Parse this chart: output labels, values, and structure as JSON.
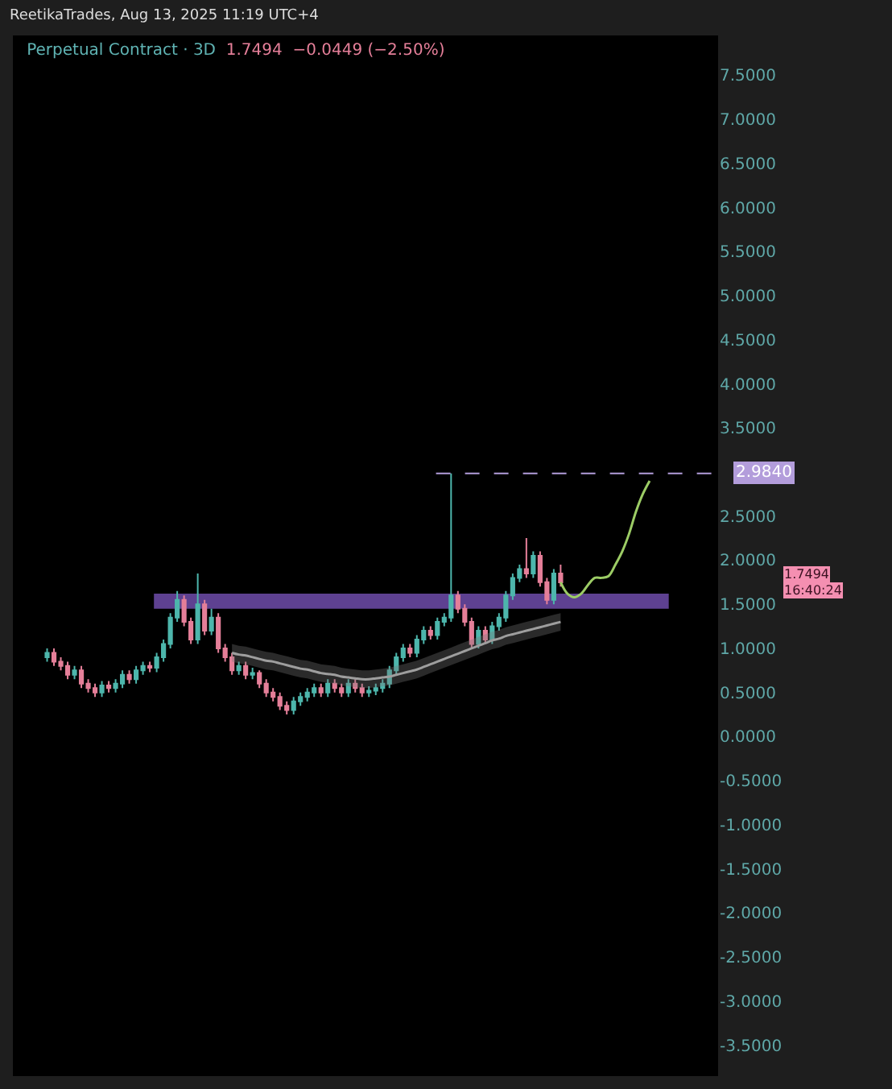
{
  "chart_data": {
    "type": "candlestick",
    "title": "Perpetual Contract · 3D",
    "subtitle": "1.7494  −0.0449 (−2.50%)",
    "annotations": [
      "ReetikaTrades, Aug 13, 2025 11:19 UTC+4",
      "1.7494",
      "16:40:24"
    ],
    "categories": [
      null,
      null,
      null,
      null,
      null,
      null,
      null,
      null,
      null,
      null,
      null,
      null,
      null,
      null,
      null,
      null,
      null,
      null,
      null,
      null,
      null,
      null,
      null,
      null,
      null,
      null,
      null,
      null,
      null,
      null,
      null,
      null,
      null,
      null,
      null,
      null,
      null,
      null,
      null,
      null,
      null,
      null,
      null,
      null,
      null,
      null,
      null,
      null,
      null,
      null,
      null,
      null,
      null,
      null,
      null,
      null,
      null,
      null,
      null,
      null,
      null,
      null,
      null,
      null,
      null,
      null,
      null,
      null,
      null,
      null,
      null,
      null,
      null,
      null,
      null,
      null,
      null,
      null,
      null,
      null,
      null,
      null,
      null,
      null,
      null,
      null,
      null,
      null,
      null,
      null,
      null,
      null,
      null,
      null,
      null,
      null
    ],
    "ohlc": [
      [
        0.9,
        1.0,
        0.85,
        0.95
      ],
      [
        0.95,
        1.0,
        0.8,
        0.85
      ],
      [
        0.85,
        0.9,
        0.75,
        0.8
      ],
      [
        0.8,
        0.85,
        0.65,
        0.7
      ],
      [
        0.7,
        0.8,
        0.65,
        0.75
      ],
      [
        0.75,
        0.8,
        0.55,
        0.6
      ],
      [
        0.6,
        0.65,
        0.5,
        0.55
      ],
      [
        0.55,
        0.6,
        0.45,
        0.5
      ],
      [
        0.5,
        0.63,
        0.45,
        0.58
      ],
      [
        0.58,
        0.63,
        0.5,
        0.55
      ],
      [
        0.55,
        0.65,
        0.5,
        0.6
      ],
      [
        0.6,
        0.75,
        0.55,
        0.7
      ],
      [
        0.7,
        0.75,
        0.6,
        0.65
      ],
      [
        0.65,
        0.8,
        0.6,
        0.75
      ],
      [
        0.75,
        0.85,
        0.7,
        0.8
      ],
      [
        0.8,
        0.85,
        0.73,
        0.78
      ],
      [
        0.78,
        0.95,
        0.73,
        0.9
      ],
      [
        0.9,
        1.1,
        0.85,
        1.05
      ],
      [
        1.05,
        1.4,
        1.0,
        1.35
      ],
      [
        1.35,
        1.65,
        1.3,
        1.55
      ],
      [
        1.55,
        1.6,
        1.25,
        1.3
      ],
      [
        1.3,
        1.35,
        1.05,
        1.1
      ],
      [
        1.1,
        1.85,
        1.05,
        1.5
      ],
      [
        1.5,
        1.55,
        1.15,
        1.2
      ],
      [
        1.2,
        1.45,
        1.15,
        1.35
      ],
      [
        1.35,
        1.4,
        0.95,
        1.0
      ],
      [
        1.0,
        1.05,
        0.85,
        0.9
      ],
      [
        0.9,
        0.95,
        0.7,
        0.75
      ],
      [
        0.75,
        0.85,
        0.7,
        0.8
      ],
      [
        0.8,
        0.85,
        0.65,
        0.7
      ],
      [
        0.7,
        0.78,
        0.65,
        0.72
      ],
      [
        0.72,
        0.75,
        0.55,
        0.6
      ],
      [
        0.6,
        0.65,
        0.45,
        0.5
      ],
      [
        0.5,
        0.55,
        0.4,
        0.45
      ],
      [
        0.45,
        0.5,
        0.3,
        0.35
      ],
      [
        0.35,
        0.4,
        0.25,
        0.3
      ],
      [
        0.3,
        0.45,
        0.25,
        0.4
      ],
      [
        0.4,
        0.5,
        0.35,
        0.45
      ],
      [
        0.45,
        0.55,
        0.4,
        0.5
      ],
      [
        0.5,
        0.6,
        0.45,
        0.55
      ],
      [
        0.55,
        0.6,
        0.45,
        0.5
      ],
      [
        0.5,
        0.65,
        0.45,
        0.6
      ],
      [
        0.6,
        0.65,
        0.5,
        0.55
      ],
      [
        0.55,
        0.6,
        0.45,
        0.5
      ],
      [
        0.5,
        0.65,
        0.45,
        0.6
      ],
      [
        0.6,
        0.65,
        0.5,
        0.55
      ],
      [
        0.55,
        0.6,
        0.45,
        0.5
      ],
      [
        0.5,
        0.57,
        0.45,
        0.52
      ],
      [
        0.52,
        0.6,
        0.47,
        0.55
      ],
      [
        0.55,
        0.65,
        0.5,
        0.6
      ],
      [
        0.6,
        0.8,
        0.55,
        0.75
      ],
      [
        0.75,
        0.95,
        0.7,
        0.9
      ],
      [
        0.9,
        1.05,
        0.85,
        1.0
      ],
      [
        1.0,
        1.05,
        0.9,
        0.95
      ],
      [
        0.95,
        1.15,
        0.9,
        1.1
      ],
      [
        1.1,
        1.25,
        1.05,
        1.2
      ],
      [
        1.2,
        1.25,
        1.1,
        1.15
      ],
      [
        1.15,
        1.35,
        1.1,
        1.3
      ],
      [
        1.3,
        1.4,
        1.25,
        1.35
      ],
      [
        1.35,
        2.984,
        1.3,
        1.6
      ],
      [
        1.6,
        1.65,
        1.4,
        1.45
      ],
      [
        1.45,
        1.5,
        1.25,
        1.3
      ],
      [
        1.3,
        1.35,
        1.0,
        1.05
      ],
      [
        1.05,
        1.25,
        1.0,
        1.2
      ],
      [
        1.2,
        1.25,
        1.05,
        1.1
      ],
      [
        1.1,
        1.3,
        1.05,
        1.25
      ],
      [
        1.25,
        1.4,
        1.2,
        1.35
      ],
      [
        1.35,
        1.65,
        1.3,
        1.6
      ],
      [
        1.6,
        1.85,
        1.55,
        1.8
      ],
      [
        1.8,
        1.95,
        1.75,
        1.9
      ],
      [
        1.9,
        2.25,
        1.8,
        1.85
      ],
      [
        1.85,
        2.1,
        1.8,
        2.05
      ],
      [
        2.05,
        2.1,
        1.7,
        1.75
      ],
      [
        1.75,
        1.8,
        1.5,
        1.55
      ],
      [
        1.55,
        1.9,
        1.5,
        1.85
      ],
      [
        1.85,
        1.95,
        1.7,
        1.7494
      ],
      null,
      null,
      null,
      null,
      null,
      null,
      null,
      null,
      null,
      null,
      null,
      null,
      null,
      null,
      null,
      null,
      null,
      null,
      null,
      null
    ],
    "colors": [
      "#4db6ac",
      "#e57f99",
      "#e57f99",
      "#e57f99",
      "#4db6ac",
      "#e57f99",
      "#e57f99",
      "#e57f99",
      "#4db6ac",
      "#e57f99",
      "#4db6ac",
      "#4db6ac",
      "#e57f99",
      "#4db6ac",
      "#4db6ac",
      "#e57f99",
      "#4db6ac",
      "#4db6ac",
      "#4db6ac",
      "#4db6ac",
      "#e57f99",
      "#e57f99",
      "#4db6ac",
      "#e57f99",
      "#4db6ac",
      "#e57f99",
      "#e57f99",
      "#e57f99",
      "#4db6ac",
      "#e57f99",
      "#4db6ac",
      "#e57f99",
      "#e57f99",
      "#e57f99",
      "#e57f99",
      "#e57f99",
      "#4db6ac",
      "#4db6ac",
      "#4db6ac",
      "#4db6ac",
      "#e57f99",
      "#4db6ac",
      "#e57f99",
      "#e57f99",
      "#4db6ac",
      "#e57f99",
      "#e57f99",
      "#4db6ac",
      "#4db6ac",
      "#4db6ac",
      "#4db6ac",
      "#4db6ac",
      "#4db6ac",
      "#e57f99",
      "#4db6ac",
      "#4db6ac",
      "#e57f99",
      "#4db6ac",
      "#4db6ac",
      "#4db6ac",
      "#e57f99",
      "#e57f99",
      "#e57f99",
      "#4db6ac",
      "#e57f99",
      "#4db6ac",
      "#4db6ac",
      "#4db6ac",
      "#4db6ac",
      "#4db6ac",
      "#e57f99",
      "#4db6ac",
      "#e57f99",
      "#e57f99",
      "#4db6ac",
      "#e57f99",
      null,
      null,
      null,
      null,
      null,
      null,
      null,
      null,
      null,
      null,
      null,
      null,
      null,
      null,
      null,
      null,
      null,
      null,
      null,
      null
    ],
    "series": [
      {
        "type": "line",
        "color": "#9e9e9e",
        "values": [
          null,
          null,
          null,
          null,
          null,
          null,
          null,
          null,
          null,
          null,
          null,
          null,
          null,
          null,
          null,
          null,
          null,
          null,
          null,
          null,
          null,
          null,
          null,
          null,
          null,
          null,
          null,
          0.95,
          0.93,
          0.92,
          0.9,
          0.88,
          0.86,
          0.85,
          0.83,
          0.81,
          0.79,
          0.77,
          0.76,
          0.74,
          0.72,
          0.71,
          0.7,
          0.68,
          0.67,
          0.66,
          0.65,
          0.65,
          0.66,
          0.67,
          0.68,
          0.7,
          0.72,
          0.74,
          0.76,
          0.79,
          0.82,
          0.85,
          0.88,
          0.91,
          0.94,
          0.97,
          1.0,
          1.03,
          1.06,
          1.09,
          1.11,
          1.14,
          1.16,
          1.18,
          1.2,
          1.22,
          1.24,
          1.26,
          1.28,
          1.3,
          null,
          null,
          null,
          null,
          null,
          null,
          null,
          null,
          null,
          null,
          null,
          null,
          null,
          null,
          null,
          null,
          null,
          null,
          null,
          null
        ],
        "lower": [
          null,
          null,
          null,
          null,
          null,
          null,
          null,
          null,
          null,
          null,
          null,
          null,
          null,
          null,
          null,
          null,
          null,
          null,
          null,
          null,
          null,
          null,
          null,
          null,
          null,
          null,
          null,
          0.85,
          0.83,
          0.82,
          0.8,
          0.78,
          0.76,
          0.75,
          0.73,
          0.71,
          0.69,
          0.67,
          0.66,
          0.64,
          0.62,
          0.61,
          0.6,
          0.58,
          0.57,
          0.56,
          0.55,
          0.55,
          0.56,
          0.57,
          0.58,
          0.6,
          0.62,
          0.64,
          0.66,
          0.69,
          0.72,
          0.75,
          0.78,
          0.81,
          0.84,
          0.87,
          0.9,
          0.93,
          0.96,
          0.99,
          1.01,
          1.04,
          1.06,
          1.08,
          1.1,
          1.12,
          1.14,
          1.16,
          1.18,
          1.2,
          null,
          null,
          null,
          null,
          null,
          null,
          null,
          null,
          null,
          null,
          null,
          null,
          null,
          null,
          null,
          null,
          null,
          null,
          null,
          null
        ],
        "upper": [
          null,
          null,
          null,
          null,
          null,
          null,
          null,
          null,
          null,
          null,
          null,
          null,
          null,
          null,
          null,
          null,
          null,
          null,
          null,
          null,
          null,
          null,
          null,
          null,
          null,
          null,
          null,
          1.05,
          1.03,
          1.02,
          1.0,
          0.98,
          0.96,
          0.95,
          0.93,
          0.91,
          0.89,
          0.87,
          0.86,
          0.84,
          0.82,
          0.81,
          0.8,
          0.78,
          0.77,
          0.76,
          0.75,
          0.75,
          0.76,
          0.77,
          0.78,
          0.8,
          0.82,
          0.84,
          0.86,
          0.89,
          0.92,
          0.95,
          0.98,
          1.01,
          1.04,
          1.07,
          1.1,
          1.13,
          1.16,
          1.19,
          1.21,
          1.24,
          1.26,
          1.28,
          1.3,
          1.32,
          1.34,
          1.36,
          1.38,
          1.4,
          null,
          null,
          null,
          null,
          null,
          null,
          null,
          null,
          null,
          null,
          null,
          null,
          null,
          null,
          null,
          null,
          null,
          null,
          null,
          null
        ]
      },
      {
        "type": "line",
        "color": "#9ccc65",
        "values": [
          null,
          null,
          null,
          null,
          null,
          null,
          null,
          null,
          null,
          null,
          null,
          null,
          null,
          null,
          null,
          null,
          null,
          null,
          null,
          null,
          null,
          null,
          null,
          null,
          null,
          null,
          null,
          null,
          null,
          null,
          null,
          null,
          null,
          null,
          null,
          null,
          null,
          null,
          null,
          null,
          null,
          null,
          null,
          null,
          null,
          null,
          null,
          null,
          null,
          null,
          null,
          null,
          null,
          null,
          null,
          null,
          null,
          null,
          null,
          null,
          null,
          null,
          null,
          null,
          null,
          null,
          null,
          null,
          null,
          null,
          null,
          null,
          null,
          null,
          null,
          1.75,
          1.62,
          1.58,
          1.62,
          1.72,
          1.8,
          1.8,
          1.82,
          1.95,
          2.1,
          2.3,
          2.55,
          2.75,
          2.9,
          null,
          null,
          null,
          null,
          null,
          null,
          null
        ]
      }
    ],
    "ref_lines": [
      {
        "axis": "y",
        "value": 2.984,
        "label": "2.9840",
        "color": "#b39ddb",
        "line_style": "dashed"
      }
    ],
    "bands": [
      {
        "axis": "y",
        "from": 1.45,
        "to": 1.62,
        "color": "#7e57c2"
      }
    ],
    "ylim": [
      -3.85,
      7.95
    ],
    "yticks": [
      {
        "value": -3.5,
        "label": "-3.5000"
      },
      {
        "value": -3,
        "label": "-3.0000"
      },
      {
        "value": -2.5,
        "label": "-2.5000"
      },
      {
        "value": -2,
        "label": "-2.0000"
      },
      {
        "value": -1.5,
        "label": "-1.5000"
      },
      {
        "value": -1,
        "label": "-1.0000"
      },
      {
        "value": -0.5,
        "label": "-0.5000"
      },
      {
        "value": 0,
        "label": "0.0000"
      },
      {
        "value": 0.5,
        "label": "0.5000"
      },
      {
        "value": 1,
        "label": "1.0000"
      },
      {
        "value": 1.5,
        "label": "1.5000"
      },
      {
        "value": 2,
        "label": "2.0000"
      },
      {
        "value": 2.5,
        "label": "2.5000"
      },
      {
        "value": 3.5,
        "label": "3.5000"
      },
      {
        "value": 4,
        "label": "4.0000"
      },
      {
        "value": 4.5,
        "label": "4.5000"
      },
      {
        "value": 5,
        "label": "5.0000"
      },
      {
        "value": 5.5,
        "label": "5.5000"
      },
      {
        "value": 6,
        "label": "6.0000"
      },
      {
        "value": 6.5,
        "label": "6.5000"
      },
      {
        "value": 7,
        "label": "7.0000"
      },
      {
        "value": 7.5,
        "label": "7.5000"
      }
    ],
    "tick_labels": "y"
  }
}
